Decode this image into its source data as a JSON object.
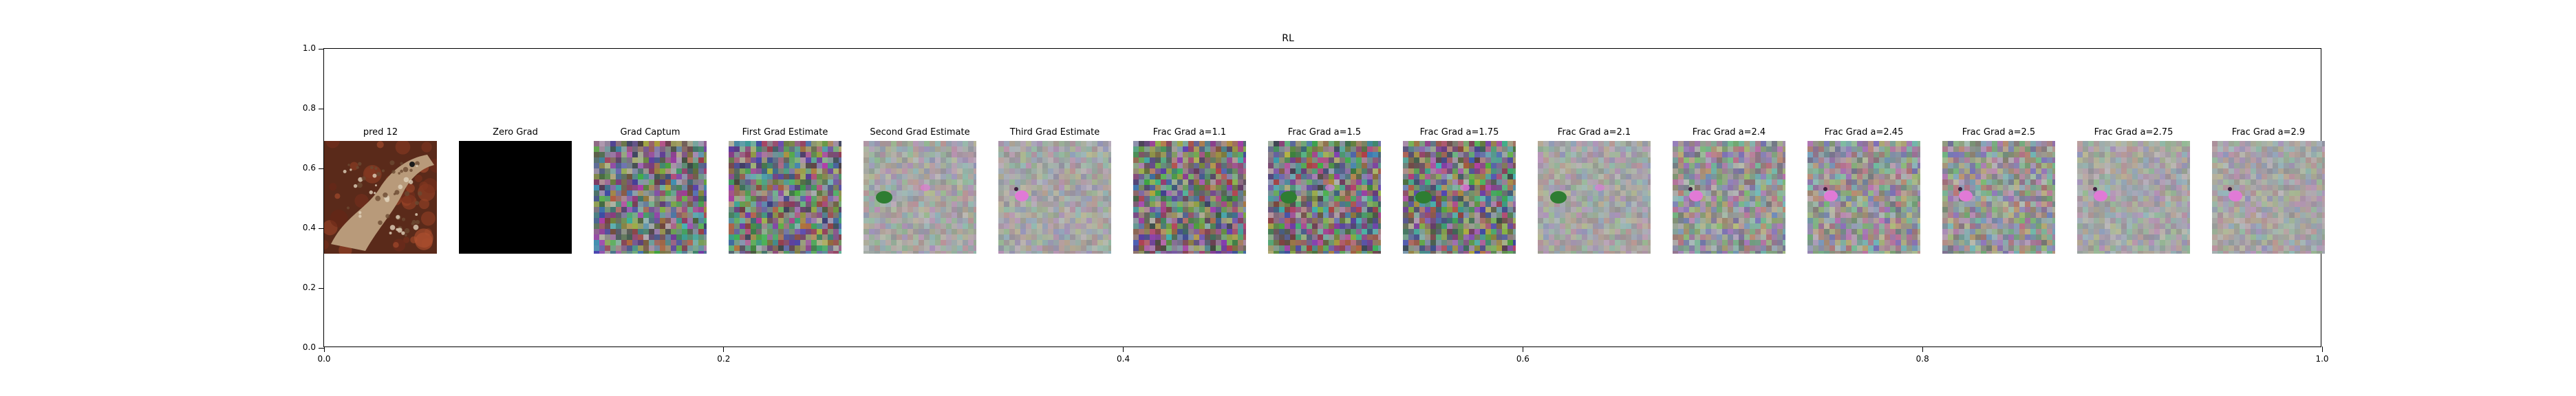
{
  "chart_data": {
    "type": "image-grid",
    "title": "RL",
    "xlim": [
      0.0,
      1.0
    ],
    "ylim": [
      0.0,
      1.0
    ],
    "xticks": [
      "0.0",
      "0.2",
      "0.4",
      "0.6",
      "0.8",
      "1.0"
    ],
    "yticks": [
      "0.0",
      "0.2",
      "0.4",
      "0.6",
      "0.8",
      "1.0"
    ],
    "grid": false,
    "panels": [
      {
        "title": "pred 12",
        "kind": "photo"
      },
      {
        "title": "Zero Grad",
        "kind": "black"
      },
      {
        "title": "Grad Captum",
        "kind": "noise-strong"
      },
      {
        "title": "First Grad Estimate",
        "kind": "noise-strong"
      },
      {
        "title": "Second Grad Estimate",
        "kind": "noise-light-green"
      },
      {
        "title": "Third Grad Estimate",
        "kind": "noise-light-pink"
      },
      {
        "title": "Frac Grad a=1.1",
        "kind": "noise-strong"
      },
      {
        "title": "Frac Grad a=1.5",
        "kind": "noise-strong-green"
      },
      {
        "title": "Frac Grad a=1.75",
        "kind": "noise-strong-green"
      },
      {
        "title": "Frac Grad a=2.1",
        "kind": "noise-light-green"
      },
      {
        "title": "Frac Grad a=2.4",
        "kind": "noise-medium-pink"
      },
      {
        "title": "Frac Grad a=2.45",
        "kind": "noise-medium-pink"
      },
      {
        "title": "Frac Grad a=2.5",
        "kind": "noise-medium-pink"
      },
      {
        "title": "Frac Grad a=2.75",
        "kind": "noise-light-pink"
      },
      {
        "title": "Frac Grad a=2.9",
        "kind": "noise-light-pink"
      }
    ],
    "colors": {
      "noise_gray": "#9a9a9a",
      "green_blob": "#2e7d32",
      "pink_blob": "#e07ad6",
      "photo_bg": "#5a2a1a",
      "lizard": "#b89a7a"
    }
  }
}
